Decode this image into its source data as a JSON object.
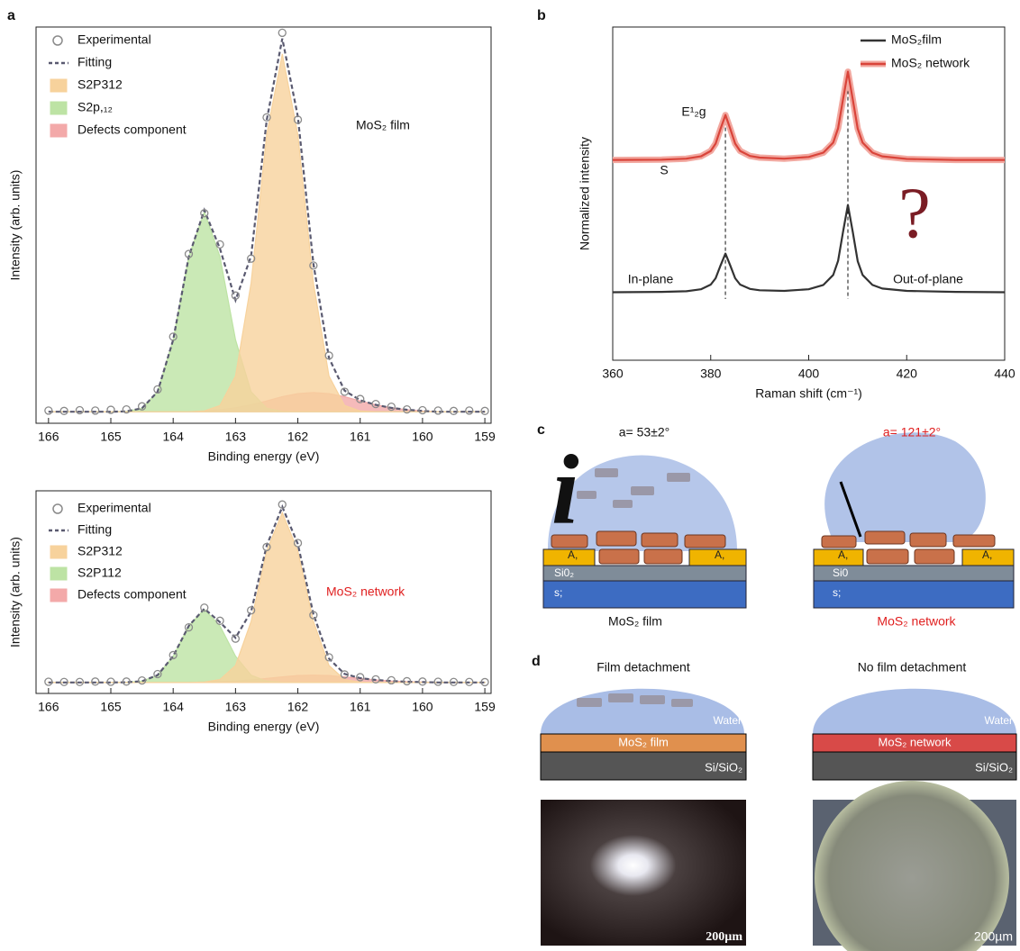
{
  "panel_labels": [
    "a",
    "b",
    "c",
    "d"
  ],
  "chart_data": [
    {
      "type": "area",
      "xlabel": "Binding energy (eV)",
      "ylabel": "Intensity (arb. units)",
      "annotation": "MoS₂ film",
      "annotation_color": "#111111",
      "x": [
        166,
        165.75,
        165.5,
        165.25,
        165,
        164.75,
        164.5,
        164.25,
        164,
        163.75,
        163.5,
        163.25,
        163,
        162.75,
        162.5,
        162.25,
        162,
        161.75,
        161.5,
        161.25,
        161,
        160.75,
        160.5,
        160.25,
        160,
        159.75,
        159.5,
        159.25,
        159
      ],
      "xlim": [
        166.2,
        158.9
      ],
      "xticks": [
        166,
        165,
        164,
        163,
        162,
        161,
        160,
        159
      ],
      "ylim": [
        -3,
        100
      ],
      "series": [
        {
          "name": "Experimental",
          "kind": "markers",
          "color": "#8a8a8a",
          "values": [
            0.3,
            0.2,
            0.4,
            0.3,
            0.5,
            0.6,
            1.4,
            5.8,
            19.5,
            41,
            51.6,
            43.5,
            30.2,
            39.8,
            76.5,
            98.5,
            75.9,
            38,
            14.6,
            5.2,
            3.3,
            2,
            1.3,
            0.6,
            0.4,
            0.3,
            0.2,
            0.3,
            0.2
          ]
        },
        {
          "name": "Fitting",
          "kind": "dashed",
          "color": "#5a5a70",
          "values": [
            0,
            0,
            0,
            0,
            0,
            0.1,
            0.9,
            5.2,
            18.7,
            40.3,
            52.4,
            42.4,
            29,
            40.5,
            75.8,
            97,
            76.8,
            38.5,
            14,
            5.5,
            3,
            1.8,
            1,
            0.5,
            0.2,
            0,
            0,
            0,
            0
          ]
        },
        {
          "name": "S2P312",
          "kind": "area",
          "color": "#f7d29c",
          "values": [
            0,
            0,
            0,
            0,
            0,
            0,
            0,
            0,
            0,
            0,
            0.2,
            1.6,
            9.3,
            33.5,
            72.1,
            93,
            72.1,
            33.5,
            9.3,
            1.6,
            0.2,
            0,
            0,
            0,
            0,
            0,
            0,
            0,
            0
          ]
        },
        {
          "name": "S2p,₁₂",
          "kind": "area",
          "color": "#bde3a4",
          "values": [
            0,
            0,
            0,
            0,
            0,
            0.1,
            0.9,
            5.2,
            18.7,
            40.3,
            52,
            40.3,
            18.7,
            5.2,
            0.9,
            0.1,
            0,
            0,
            0,
            0,
            0,
            0,
            0,
            0,
            0,
            0,
            0,
            0,
            0
          ]
        },
        {
          "name": "Defects component",
          "kind": "area",
          "color": "#f3a9a9",
          "values": [
            0,
            0,
            0,
            0,
            0,
            0,
            0,
            0,
            0,
            0,
            0.2,
            0.5,
            1,
            1.8,
            2.8,
            3.9,
            4.7,
            5,
            4.7,
            3.9,
            2.8,
            1.8,
            1,
            0.5,
            0.2,
            0,
            0,
            0,
            0
          ]
        }
      ]
    },
    {
      "type": "area",
      "xlabel": "Binding energy (eV)",
      "ylabel": "Intensity (arb. units)",
      "annotation": "MoS₂ network",
      "annotation_color": "#e02020",
      "x": [
        166,
        165.75,
        165.5,
        165.25,
        165,
        164.75,
        164.5,
        164.25,
        164,
        163.75,
        163.5,
        163.25,
        163,
        162.75,
        162.5,
        162.25,
        162,
        161.75,
        161.5,
        161.25,
        161,
        160.75,
        160.5,
        160.25,
        160,
        159.75,
        159.5,
        159.25,
        159
      ],
      "xlim": [
        166.2,
        158.9
      ],
      "xticks": [
        166,
        165,
        164,
        163,
        162,
        161,
        160,
        159
      ],
      "ylim": [
        -6,
        105
      ],
      "series": [
        {
          "name": "Experimental",
          "kind": "markers",
          "color": "#8a8a8a",
          "values": [
            0.4,
            0.3,
            0.3,
            0.5,
            0.4,
            0.5,
            1.1,
            4.6,
            15,
            30.2,
            41,
            33.8,
            24,
            39.5,
            74.2,
            97.5,
            76.4,
            36.9,
            13.8,
            4.4,
            2.9,
            1.7,
            1.2,
            0.7,
            0.5,
            0.4,
            0.3,
            0.3,
            0.2
          ]
        },
        {
          "name": "Fitting",
          "kind": "dashed",
          "color": "#5a5a70",
          "values": [
            0,
            0,
            0,
            0,
            0,
            0.1,
            0.7,
            4,
            14.4,
            31,
            40.4,
            33,
            24.5,
            38.9,
            75,
            96.2,
            75.9,
            37.5,
            13.1,
            4.7,
            2.4,
            1.4,
            0.8,
            0.4,
            0.2,
            0,
            0,
            0,
            0
          ]
        },
        {
          "name": "S2P312",
          "kind": "area",
          "color": "#f7d29c",
          "values": [
            0,
            0,
            0,
            0,
            0,
            0,
            0,
            0,
            0,
            0,
            0.2,
            1.6,
            9.3,
            33.5,
            72.1,
            93,
            72.1,
            33.5,
            9.3,
            1.6,
            0.2,
            0,
            0,
            0,
            0,
            0,
            0,
            0,
            0
          ]
        },
        {
          "name": "S2P112",
          "kind": "area",
          "color": "#bde3a4",
          "values": [
            0,
            0,
            0,
            0,
            0,
            0.1,
            0.7,
            4,
            14.4,
            31,
            40,
            31,
            14.4,
            4,
            0.7,
            0.1,
            0,
            0,
            0,
            0,
            0,
            0,
            0,
            0,
            0,
            0,
            0,
            0,
            0
          ]
        },
        {
          "name": "Defects component",
          "kind": "area",
          "color": "#f3a9a9",
          "values": [
            0,
            0,
            0,
            0,
            0,
            0,
            0,
            0,
            0,
            0,
            0.2,
            0.4,
            0.8,
            1.4,
            2.2,
            3.1,
            3.8,
            4,
            3.8,
            3.1,
            2.2,
            1.4,
            0.8,
            0.4,
            0.2,
            0,
            0,
            0,
            0
          ]
        }
      ]
    },
    {
      "type": "line",
      "xlabel": "Raman shift (cm⁻¹)",
      "ylabel": "Normalized intensity",
      "x": [
        360,
        370,
        375,
        378,
        380,
        381,
        382,
        383,
        384,
        385,
        386,
        388,
        390,
        395,
        400,
        403,
        405,
        406,
        407,
        408,
        409,
        410,
        411,
        413,
        415,
        420,
        430,
        440
      ],
      "xlim": [
        360,
        440
      ],
      "xticks": [
        360,
        380,
        400,
        420,
        440
      ],
      "ylim": [
        0,
        100
      ],
      "markers": [
        383,
        408
      ],
      "peak_labels": [
        "E¹₂g",
        "S"
      ],
      "region_labels": [
        "In-plane",
        "Out-of-plane"
      ],
      "mark": "?",
      "series": [
        {
          "name": "MoS₂film",
          "color": "#333333",
          "values": [
            20.4,
            20.5,
            20.7,
            21.3,
            22.7,
            24.6,
            28.4,
            32,
            28.4,
            24.6,
            22.7,
            21.4,
            21,
            20.8,
            21.3,
            22.6,
            25.6,
            29.8,
            38.5,
            46.6,
            38.5,
            29.7,
            25.6,
            22.6,
            21.5,
            20.8,
            20.5,
            20.4
          ]
        },
        {
          "name": "MoS₂ network",
          "color": "#d9443a",
          "values": [
            60.1,
            60.2,
            60.5,
            61.2,
            62.8,
            65,
            69.4,
            73.6,
            69.4,
            65,
            62.8,
            61.3,
            60.8,
            60.5,
            61,
            62.3,
            65.3,
            69.6,
            78.3,
            86.6,
            78.3,
            69.5,
            65.3,
            62.3,
            61.2,
            60.4,
            60.1,
            60.1
          ]
        }
      ]
    }
  ],
  "schematic_c": {
    "angles": [
      "a= 53±2°",
      "a= 121±2°"
    ],
    "captions": [
      "MoS₂ film",
      "MoS₂ network"
    ],
    "layers_left": [
      "A,",
      "A,",
      "Si0₂",
      "s;"
    ],
    "layers_right": [
      "A,",
      "A,",
      "Si0",
      "s;"
    ],
    "glyph": "i"
  },
  "schematic_d": {
    "titles": [
      "Film detachment",
      "No film detachment"
    ],
    "water": [
      "Water",
      "Water"
    ],
    "films": [
      "MoS₂ film",
      "MoS₂ network"
    ],
    "substrates": [
      "Si/SiO₂",
      "Si/SiO₂"
    ],
    "scale_bars": [
      "200µm",
      "200µm"
    ]
  }
}
